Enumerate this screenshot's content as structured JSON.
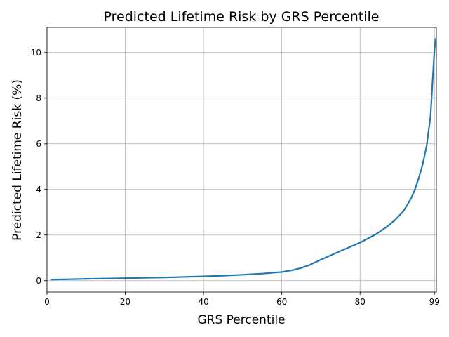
{
  "chart_data": {
    "type": "line",
    "title": "Predicted Lifetime Risk by GRS Percentile",
    "xlabel": "GRS Percentile",
    "ylabel": "Predicted Lifetime Risk (%)",
    "xlim": [
      0,
      99.5
    ],
    "ylim": [
      -0.5,
      11.1
    ],
    "xticks": [
      0,
      20,
      40,
      60,
      80,
      99
    ],
    "xtick_labels": [
      "0",
      "20",
      "40",
      "60",
      "80",
      "99"
    ],
    "yticks": [
      0,
      2,
      4,
      6,
      8,
      10
    ],
    "ytick_labels": [
      "0",
      "2",
      "4",
      "6",
      "8",
      "10"
    ],
    "grid": true,
    "series": [
      {
        "color": "#1f77b4",
        "x": [
          1,
          5,
          10,
          20,
          30,
          40,
          45,
          50,
          55,
          60,
          63,
          65,
          67,
          70,
          75,
          80,
          84,
          87,
          89,
          91,
          92,
          93,
          94,
          95,
          96,
          97,
          98,
          99,
          99.3
        ],
        "y": [
          0.05,
          0.06,
          0.08,
          0.11,
          0.14,
          0.19,
          0.22,
          0.26,
          0.31,
          0.38,
          0.47,
          0.56,
          0.68,
          0.92,
          1.3,
          1.67,
          2.03,
          2.38,
          2.67,
          3.03,
          3.3,
          3.6,
          3.98,
          4.5,
          5.1,
          5.9,
          7.2,
          10.1,
          10.6
        ]
      }
    ]
  }
}
